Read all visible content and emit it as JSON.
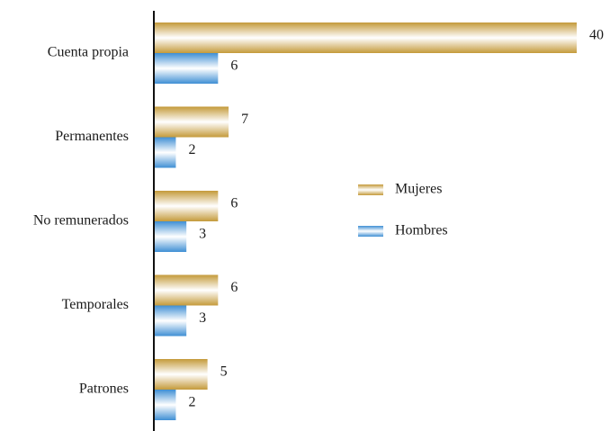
{
  "chart_data": {
    "type": "bar",
    "orientation": "horizontal",
    "categories": [
      "Cuenta propia",
      "Permanentes",
      "No remunerados",
      "Temporales",
      "Patrones"
    ],
    "series": [
      {
        "name": "Mujeres",
        "color": "#c49a3a",
        "values": [
          40,
          7,
          6,
          6,
          5
        ]
      },
      {
        "name": "Hombres",
        "color": "#3f8fd4",
        "values": [
          6,
          2,
          3,
          3,
          2
        ]
      }
    ],
    "legend": "right"
  }
}
